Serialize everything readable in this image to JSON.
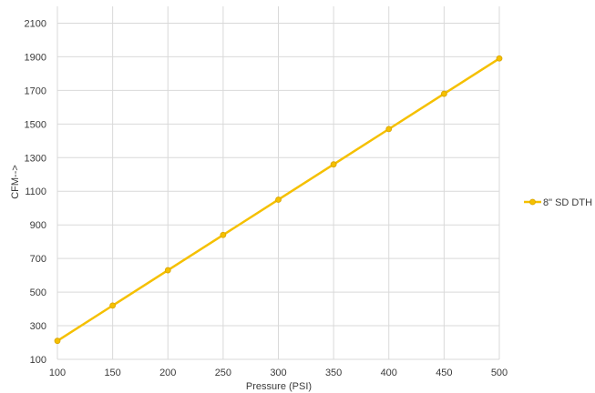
{
  "chart_data": {
    "type": "line",
    "title": "",
    "xlabel": "Pressure (PSI)",
    "ylabel": "CFM-->",
    "x": [
      100,
      150,
      200,
      250,
      300,
      350,
      400,
      450,
      500
    ],
    "series": [
      {
        "name": "8\" SD DTH",
        "values": [
          210,
          420,
          630,
          840,
          1050,
          1260,
          1470,
          1680,
          1890
        ],
        "color": "#F5C000"
      }
    ],
    "xlim": [
      100,
      500
    ],
    "ylim": [
      100,
      2200
    ],
    "x_ticks": [
      100,
      150,
      200,
      250,
      300,
      350,
      400,
      450,
      500
    ],
    "y_ticks": [
      100,
      300,
      500,
      700,
      900,
      1100,
      1300,
      1500,
      1700,
      1900,
      2100
    ],
    "grid": true,
    "legend_position": "right"
  }
}
